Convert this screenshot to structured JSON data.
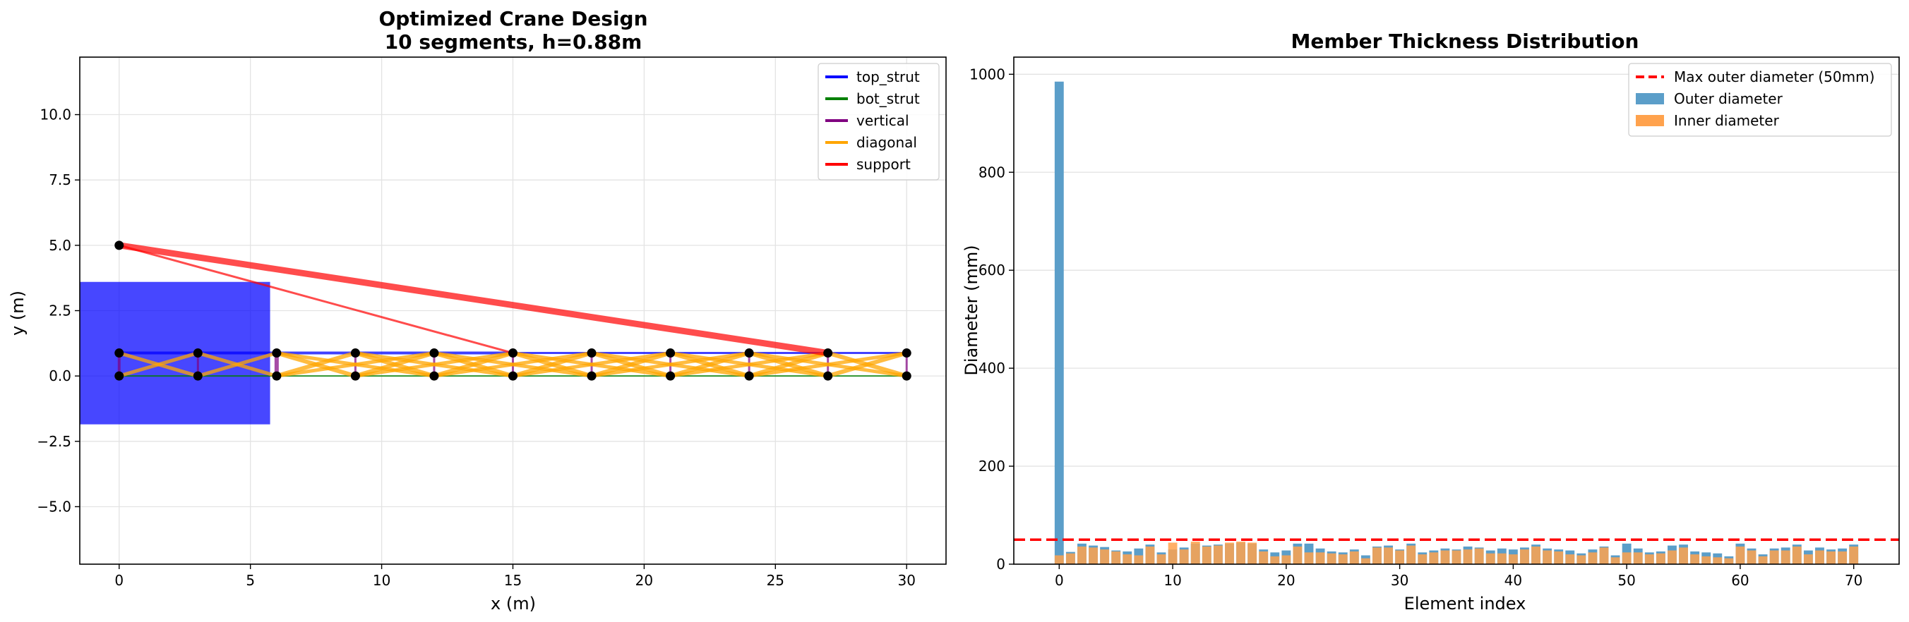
{
  "chart_data": [
    {
      "type": "line",
      "title": "Optimized Crane Design",
      "subtitle": "10 segments, h=0.88m",
      "xlabel": "x (m)",
      "ylabel": "y (m)",
      "xlim": [
        -1.5,
        31.5
      ],
      "ylim": [
        -7.2,
        12.2
      ],
      "xticks": [
        0,
        5,
        10,
        15,
        20,
        25,
        30
      ],
      "yticks": [
        -5.0,
        -2.5,
        0.0,
        2.5,
        5.0,
        7.5,
        10.0
      ],
      "xtick_labels": [
        "0",
        "5",
        "10",
        "15",
        "20",
        "25",
        "30"
      ],
      "ytick_labels": [
        "−5.0",
        "−2.5",
        "0.0",
        "2.5",
        "5.0",
        "7.5",
        "10.0"
      ],
      "grid": true,
      "legend_position": "top-right",
      "legend": [
        {
          "label": "top_strut",
          "color": "#0000ff"
        },
        {
          "label": "bot_strut",
          "color": "#008000"
        },
        {
          "label": "vertical",
          "color": "#800080"
        },
        {
          "label": "diagonal",
          "color": "#ffa500"
        },
        {
          "label": "support",
          "color": "#ff0000"
        }
      ],
      "obstacle": {
        "x0": -1.5,
        "x1": 5.75,
        "y0": -1.85,
        "y1": 3.6,
        "color": "#0000ff"
      },
      "nodes": {
        "x": [
          0,
          3,
          6,
          9,
          12,
          15,
          18,
          21,
          24,
          27,
          30
        ],
        "top_y": 0.88,
        "bottom_y": 0.0,
        "support_point": [
          0,
          5.0
        ]
      },
      "series": [
        {
          "type": "top_strut",
          "segments": [
            [
              0,
              0.88,
              3,
              0.88
            ],
            [
              3,
              0.88,
              6,
              0.88
            ],
            [
              6,
              0.88,
              9,
              0.88
            ],
            [
              9,
              0.88,
              12,
              0.88
            ],
            [
              12,
              0.88,
              15,
              0.88
            ],
            [
              15,
              0.88,
              18,
              0.88
            ],
            [
              18,
              0.88,
              21,
              0.88
            ],
            [
              21,
              0.88,
              24,
              0.88
            ],
            [
              24,
              0.88,
              27,
              0.88
            ],
            [
              27,
              0.88,
              30,
              0.88
            ]
          ],
          "widths": [
            4,
            4,
            4,
            4,
            4,
            3,
            3,
            3,
            3,
            3
          ]
        },
        {
          "type": "bot_strut",
          "segments": [
            [
              0,
              0,
              3,
              0
            ],
            [
              3,
              0,
              6,
              0
            ],
            [
              6,
              0,
              9,
              0
            ],
            [
              9,
              0,
              12,
              0
            ],
            [
              12,
              0,
              15,
              0
            ],
            [
              15,
              0,
              18,
              0
            ],
            [
              18,
              0,
              21,
              0
            ],
            [
              21,
              0,
              24,
              0
            ],
            [
              24,
              0,
              27,
              0
            ],
            [
              27,
              0,
              30,
              0
            ]
          ],
          "widths": [
            2,
            2,
            2,
            2,
            2,
            2,
            2,
            2,
            2,
            2
          ]
        },
        {
          "type": "vertical",
          "segments": [
            [
              0,
              0,
              0,
              0.88
            ],
            [
              3,
              0,
              3,
              0.88
            ],
            [
              6,
              0,
              6,
              0.88
            ],
            [
              9,
              0,
              9,
              0.88
            ],
            [
              12,
              0,
              12,
              0.88
            ],
            [
              15,
              0,
              15,
              0.88
            ],
            [
              18,
              0,
              18,
              0.88
            ],
            [
              21,
              0,
              21,
              0.88
            ],
            [
              24,
              0,
              24,
              0.88
            ],
            [
              27,
              0,
              27,
              0.88
            ],
            [
              30,
              0,
              30,
              0.88
            ]
          ],
          "widths": [
            4,
            3,
            6,
            3,
            3,
            3,
            3,
            3,
            3,
            3,
            3
          ]
        },
        {
          "type": "diagonal",
          "segments": [
            [
              0,
              0,
              3,
              0.88
            ],
            [
              0,
              0.88,
              3,
              0
            ],
            [
              3,
              0,
              6,
              0.88
            ],
            [
              3,
              0.88,
              6,
              0
            ],
            [
              6,
              0,
              9,
              0.88
            ],
            [
              6,
              0.88,
              9,
              0
            ],
            [
              9,
              0,
              12,
              0.88
            ],
            [
              9,
              0.88,
              12,
              0
            ],
            [
              12,
              0,
              15,
              0.88
            ],
            [
              12,
              0.88,
              15,
              0
            ],
            [
              15,
              0,
              18,
              0.88
            ],
            [
              15,
              0.88,
              18,
              0
            ],
            [
              18,
              0,
              21,
              0.88
            ],
            [
              18,
              0.88,
              21,
              0
            ],
            [
              21,
              0,
              24,
              0.88
            ],
            [
              21,
              0.88,
              24,
              0
            ],
            [
              24,
              0,
              27,
              0.88
            ],
            [
              24,
              0.88,
              27,
              0
            ],
            [
              27,
              0,
              30,
              0.88
            ],
            [
              27,
              0.88,
              30,
              0
            ],
            [
              6,
              0,
              12,
              0.88
            ],
            [
              9,
              0,
              15,
              0.88
            ],
            [
              12,
              0,
              18,
              0.88
            ],
            [
              15,
              0,
              21,
              0.88
            ],
            [
              18,
              0,
              24,
              0.88
            ],
            [
              21,
              0,
              27,
              0.88
            ],
            [
              24,
              0,
              30,
              0.88
            ],
            [
              6,
              0.88,
              12,
              0
            ],
            [
              9,
              0.88,
              15,
              0
            ],
            [
              12,
              0.88,
              18,
              0
            ],
            [
              15,
              0.88,
              21,
              0
            ],
            [
              18,
              0.88,
              24,
              0
            ],
            [
              21,
              0.88,
              27,
              0
            ],
            [
              24,
              0.88,
              30,
              0
            ]
          ],
          "widths": [
            5,
            5,
            5,
            5,
            6,
            6,
            6,
            6,
            6,
            6,
            6,
            6,
            6,
            6,
            6,
            6,
            6,
            6,
            6,
            6,
            5,
            5,
            5,
            5,
            5,
            5,
            5,
            5,
            5,
            5,
            5,
            5,
            5,
            5
          ]
        },
        {
          "type": "support",
          "segments": [
            [
              0,
              5.0,
              27,
              0.88
            ],
            [
              0,
              5.0,
              15,
              0.88
            ]
          ],
          "widths": [
            9,
            3
          ]
        }
      ]
    },
    {
      "type": "bar",
      "title": "Member Thickness Distribution",
      "xlabel": "Element index",
      "ylabel": "Diameter (mm)",
      "xlim": [
        -4,
        74
      ],
      "ylim": [
        0,
        1035
      ],
      "xticks": [
        0,
        10,
        20,
        30,
        40,
        50,
        60,
        70
      ],
      "yticks": [
        0,
        200,
        400,
        600,
        800,
        1000
      ],
      "xtick_labels": [
        "0",
        "10",
        "20",
        "30",
        "40",
        "50",
        "60",
        "70"
      ],
      "ytick_labels": [
        "0",
        "200",
        "400",
        "600",
        "800",
        "1000"
      ],
      "grid": "y",
      "legend_position": "top-right",
      "hline": {
        "y": 50,
        "label": "Max outer diameter (50mm)",
        "color": "#ff0000"
      },
      "categories": [
        0,
        1,
        2,
        3,
        4,
        5,
        6,
        7,
        8,
        9,
        10,
        11,
        12,
        13,
        14,
        15,
        16,
        17,
        18,
        19,
        20,
        21,
        22,
        23,
        24,
        25,
        26,
        27,
        28,
        29,
        30,
        31,
        32,
        33,
        34,
        35,
        36,
        37,
        38,
        39,
        40,
        41,
        42,
        43,
        44,
        45,
        46,
        47,
        48,
        49,
        50,
        51,
        52,
        53,
        54,
        55,
        56,
        57,
        58,
        59,
        60,
        61,
        62,
        63,
        64,
        65,
        66,
        67,
        68,
        69,
        70
      ],
      "series": [
        {
          "name": "Outer diameter",
          "color": "#5b9ec9",
          "values": [
            985,
            25,
            42,
            38,
            35,
            28,
            26,
            32,
            40,
            24,
            30,
            34,
            42,
            38,
            40,
            42,
            44,
            42,
            30,
            24,
            28,
            42,
            42,
            32,
            26,
            24,
            30,
            18,
            36,
            38,
            30,
            42,
            24,
            28,
            32,
            30,
            36,
            34,
            28,
            32,
            30,
            34,
            40,
            32,
            30,
            28,
            22,
            30,
            36,
            18,
            42,
            32,
            24,
            26,
            38,
            40,
            26,
            24,
            22,
            16,
            42,
            32,
            20,
            32,
            34,
            40,
            28,
            34,
            30,
            32,
            40
          ]
        },
        {
          "name": "Inner diameter",
          "color": "#ffa24d",
          "values": [
            18,
            22,
            36,
            34,
            30,
            26,
            20,
            18,
            36,
            20,
            44,
            30,
            46,
            36,
            38,
            44,
            46,
            44,
            26,
            16,
            18,
            36,
            24,
            24,
            22,
            20,
            26,
            12,
            34,
            34,
            28,
            38,
            20,
            24,
            28,
            28,
            30,
            32,
            22,
            22,
            20,
            30,
            36,
            28,
            26,
            20,
            18,
            24,
            34,
            14,
            24,
            24,
            20,
            22,
            28,
            34,
            20,
            16,
            14,
            12,
            36,
            28,
            16,
            28,
            28,
            36,
            20,
            28,
            26,
            26,
            36
          ]
        }
      ]
    }
  ]
}
